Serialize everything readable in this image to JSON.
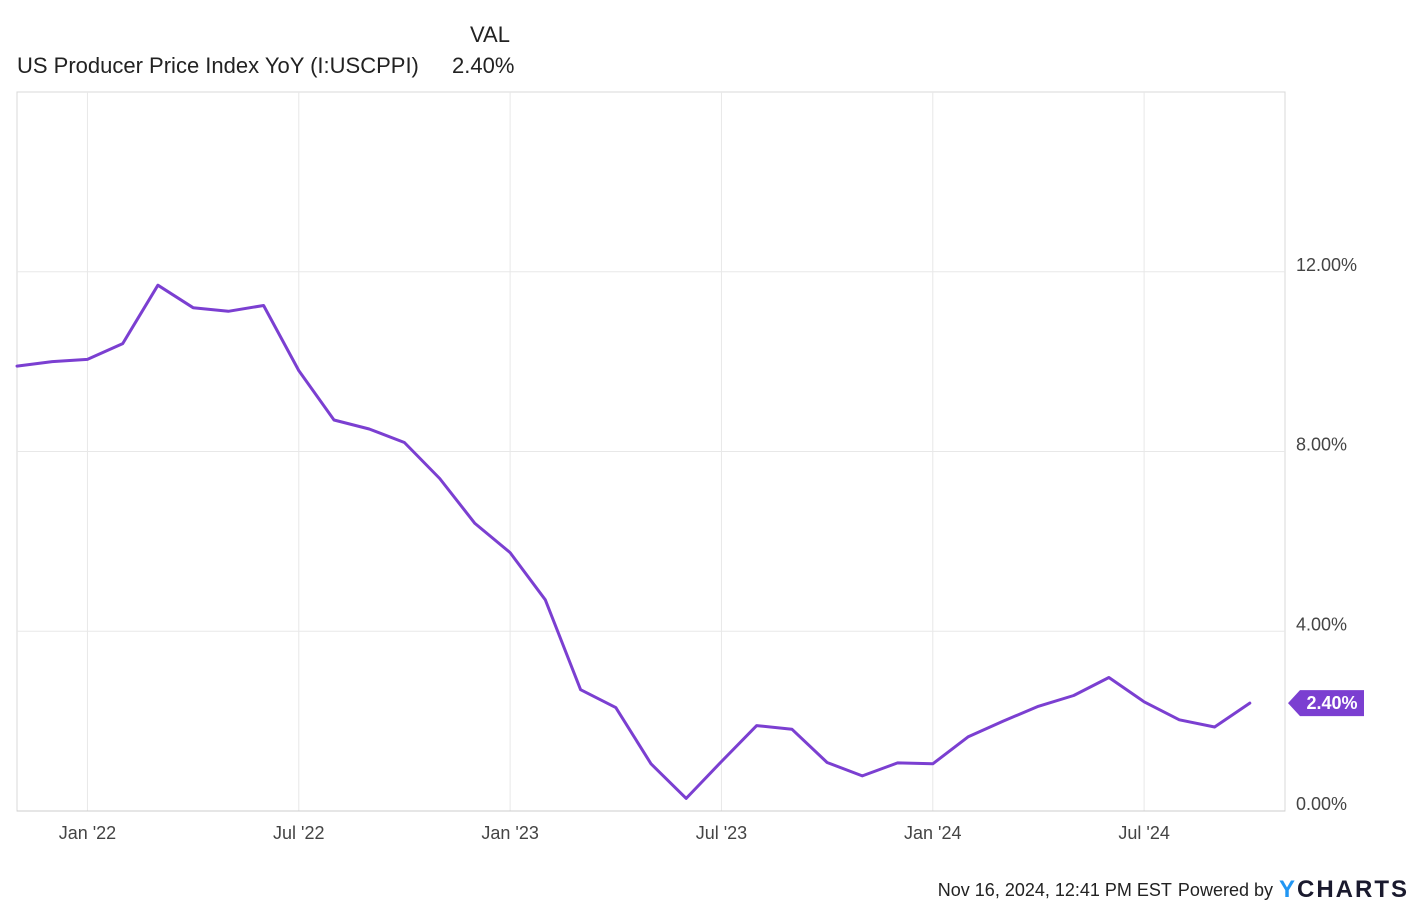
{
  "legend": {
    "header": "VAL",
    "series_name": "US Producer Price Index YoY (I:USCPPI)",
    "series_value": "2.40%"
  },
  "footer": {
    "timestamp": "Nov 16, 2024, 12:41 PM EST",
    "powered_by": "Powered by",
    "logo_y": "Y",
    "logo_rest": "CHARTS"
  },
  "colors": {
    "line": "#7b3fd1",
    "grid": "#e8e8e8",
    "axis_text": "#444444",
    "label_bg": "#7b3fd1",
    "label_text": "#ffffff"
  },
  "chart_data": {
    "type": "line",
    "x": [
      "2021-11",
      "2021-12",
      "2022-01",
      "2022-02",
      "2022-03",
      "2022-04",
      "2022-05",
      "2022-06",
      "2022-07",
      "2022-08",
      "2022-09",
      "2022-10",
      "2022-11",
      "2022-12",
      "2023-01",
      "2023-02",
      "2023-03",
      "2023-04",
      "2023-05",
      "2023-06",
      "2023-07",
      "2023-08",
      "2023-09",
      "2023-10",
      "2023-11",
      "2023-12",
      "2024-01",
      "2024-02",
      "2024-03",
      "2024-04",
      "2024-05",
      "2024-06",
      "2024-07",
      "2024-08",
      "2024-09",
      "2024-10"
    ],
    "series": [
      {
        "name": "US Producer Price Index YoY (I:USCPPI)",
        "values": [
          9.9,
          10.0,
          10.05,
          10.4,
          11.7,
          11.2,
          11.12,
          11.25,
          9.8,
          8.7,
          8.5,
          8.2,
          7.4,
          6.4,
          5.75,
          4.7,
          2.7,
          2.3,
          1.05,
          0.28,
          1.1,
          1.9,
          1.82,
          1.08,
          0.78,
          1.07,
          1.05,
          1.65,
          2.0,
          2.33,
          2.57,
          2.97,
          2.43,
          2.03,
          1.87,
          2.4
        ]
      }
    ],
    "last_value_label": "2.40%",
    "x_tick_labels": [
      {
        "date": "2022-01",
        "label": "Jan '22"
      },
      {
        "date": "2022-07",
        "label": "Jul '22"
      },
      {
        "date": "2023-01",
        "label": "Jan '23"
      },
      {
        "date": "2023-07",
        "label": "Jul '23"
      },
      {
        "date": "2024-01",
        "label": "Jan '24"
      },
      {
        "date": "2024-07",
        "label": "Jul '24"
      }
    ],
    "y_ticks": [
      0,
      4,
      8,
      12
    ],
    "y_tick_labels": [
      "0.00%",
      "4.00%",
      "8.00%",
      "12.00%"
    ],
    "ylim": [
      0,
      16
    ],
    "xlim": [
      "2021-11",
      "2024-11"
    ],
    "grid": true,
    "y_axis_side": "right"
  }
}
